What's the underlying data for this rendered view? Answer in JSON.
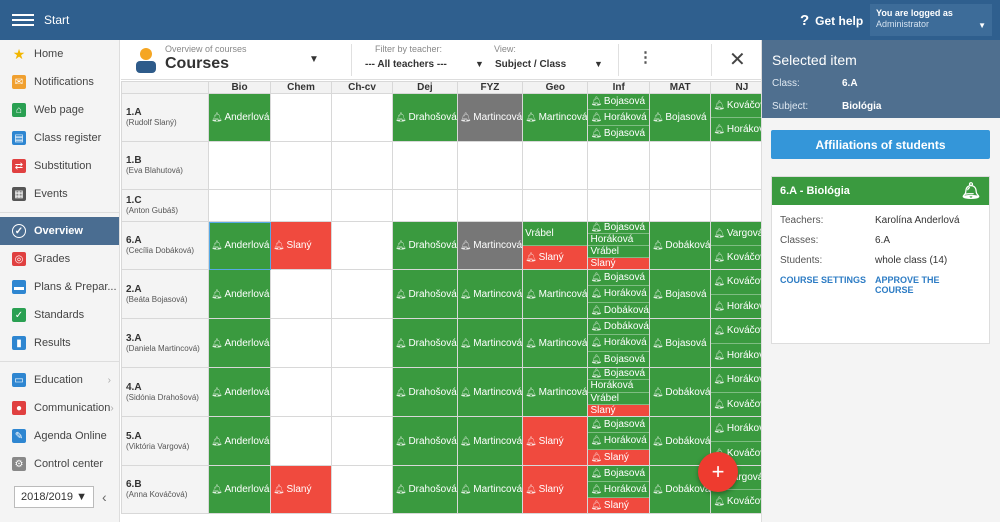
{
  "topbar": {
    "title": "Start",
    "help": "Get help",
    "user_line1": "You are logged as",
    "user_line2": "Administrator"
  },
  "sidebar": {
    "items": [
      {
        "label": "Home",
        "icon": "star-icon",
        "color": "#f2b600"
      },
      {
        "label": "Notifications",
        "icon": "mail-icon",
        "color": "#f0a030"
      },
      {
        "label": "Web page",
        "icon": "house-icon",
        "color": "#2aa052"
      },
      {
        "label": "Class register",
        "icon": "book-icon",
        "color": "#2e86d1"
      },
      {
        "label": "Substitution",
        "icon": "swap-icon",
        "color": "#e04040"
      },
      {
        "label": "Events",
        "icon": "calendar-icon",
        "color": "#555555"
      },
      {
        "label": "Overview",
        "icon": "check-circle-icon",
        "color": "#ffffff"
      },
      {
        "label": "Grades",
        "icon": "grades-icon",
        "color": "#e04040"
      },
      {
        "label": "Plans & Prepar...",
        "icon": "plans-icon",
        "color": "#2e86d1"
      },
      {
        "label": "Standards",
        "icon": "shield-icon",
        "color": "#2aa052"
      },
      {
        "label": "Results",
        "icon": "bar-chart-icon",
        "color": "#2e86d1"
      },
      {
        "label": "Education",
        "icon": "education-icon",
        "color": "#2e86d1"
      },
      {
        "label": "Communication",
        "icon": "chat-icon",
        "color": "#e04040"
      },
      {
        "label": "Agenda Online",
        "icon": "pen-icon",
        "color": "#2e86d1"
      },
      {
        "label": "Control center",
        "icon": "cog-icon",
        "color": "#888888"
      }
    ],
    "year": "2018/2019"
  },
  "header": {
    "overview_label": "Overview of courses",
    "title": "Courses",
    "filter_label": "Filter by teacher:",
    "filter_value": "--- All teachers ---",
    "view_label": "View:",
    "view_value": "Subject / Class"
  },
  "grid": {
    "columns": [
      "Bio",
      "Chem",
      "Ch-cv",
      "Dej",
      "FYZ",
      "Geo",
      "Inf",
      "MAT",
      "NJ"
    ],
    "rows": [
      {
        "cls": "1.A",
        "teacher": "(Rudolf Slaný)",
        "cells": [
          [
            {
              "t": "Anderlová",
              "c": "g",
              "b": true
            }
          ],
          [],
          [],
          [
            {
              "t": "Drahošová",
              "c": "g",
              "b": true
            }
          ],
          [
            {
              "t": "Martincová",
              "c": "gr",
              "b": true
            }
          ],
          [
            {
              "t": "Martincová",
              "c": "g",
              "b": true
            }
          ],
          [
            {
              "t": "Bojasová",
              "c": "g",
              "b": true
            },
            {
              "t": "Horáková",
              "c": "g",
              "b": true
            },
            {
              "t": "Bojasová",
              "c": "g",
              "b": true
            }
          ],
          [
            {
              "t": "Bojasová",
              "c": "g",
              "b": true
            }
          ],
          [
            {
              "t": "Kováčová",
              "c": "g",
              "b": true
            },
            {
              "t": "Horáková",
              "c": "g",
              "b": true
            }
          ]
        ]
      },
      {
        "cls": "1.B",
        "teacher": "(Eva Blahutová)",
        "cells": [
          [],
          [],
          [],
          [],
          [],
          [],
          [],
          [],
          []
        ]
      },
      {
        "cls": "1.C",
        "teacher": "(Anton Gubáš)",
        "cells": [
          [],
          [],
          [],
          [],
          [],
          [],
          [],
          [],
          []
        ]
      },
      {
        "cls": "6.A",
        "teacher": "(Cecília Dobáková)",
        "cells": [
          [
            {
              "t": "Anderlová",
              "c": "g",
              "b": true
            }
          ],
          [
            {
              "t": "Slaný",
              "c": "r",
              "b": true
            }
          ],
          [],
          [
            {
              "t": "Drahošová",
              "c": "g",
              "b": true
            }
          ],
          [
            {
              "t": "Martincová",
              "c": "gr",
              "b": true
            }
          ],
          [
            {
              "t": "Vrábel",
              "c": "g",
              "b": false
            },
            {
              "t": "Slaný",
              "c": "r",
              "b": true
            }
          ],
          [
            {
              "t": "Bojasová",
              "c": "g",
              "b": true
            },
            {
              "t": "Horáková",
              "c": "g",
              "b": false
            },
            {
              "t": "Vrábel",
              "c": "g",
              "b": false
            },
            {
              "t": "Slaný",
              "c": "r",
              "b": false
            }
          ],
          [
            {
              "t": "Dobáková",
              "c": "g",
              "b": true
            }
          ],
          [
            {
              "t": "Vargová",
              "c": "g",
              "b": true
            },
            {
              "t": "Kováčová",
              "c": "g",
              "b": true
            }
          ]
        ]
      },
      {
        "cls": "2.A",
        "teacher": "(Beáta Bojasová)",
        "cells": [
          [
            {
              "t": "Anderlová",
              "c": "g",
              "b": true
            }
          ],
          [],
          [],
          [
            {
              "t": "Drahošová",
              "c": "g",
              "b": true
            }
          ],
          [
            {
              "t": "Martincová",
              "c": "g",
              "b": true
            }
          ],
          [
            {
              "t": "Martincová",
              "c": "g",
              "b": true
            }
          ],
          [
            {
              "t": "Bojasová",
              "c": "g",
              "b": true
            },
            {
              "t": "Horáková",
              "c": "g",
              "b": true
            },
            {
              "t": "Dobáková",
              "c": "g",
              "b": true
            }
          ],
          [
            {
              "t": "Bojasová",
              "c": "g",
              "b": true
            }
          ],
          [
            {
              "t": "Kováčová",
              "c": "g",
              "b": true
            },
            {
              "t": "Horáková",
              "c": "g",
              "b": true
            }
          ]
        ]
      },
      {
        "cls": "3.A",
        "teacher": "(Daniela Martincová)",
        "cells": [
          [
            {
              "t": "Anderlová",
              "c": "g",
              "b": true
            }
          ],
          [],
          [],
          [
            {
              "t": "Drahošová",
              "c": "g",
              "b": true
            }
          ],
          [
            {
              "t": "Martincová",
              "c": "g",
              "b": true
            }
          ],
          [
            {
              "t": "Martincová",
              "c": "g",
              "b": true
            }
          ],
          [
            {
              "t": "Dobáková",
              "c": "g",
              "b": true
            },
            {
              "t": "Horáková",
              "c": "g",
              "b": true
            },
            {
              "t": "Bojasová",
              "c": "g",
              "b": true
            }
          ],
          [
            {
              "t": "Bojasová",
              "c": "g",
              "b": true
            }
          ],
          [
            {
              "t": "Kováčová",
              "c": "g",
              "b": true
            },
            {
              "t": "Horáková",
              "c": "g",
              "b": true
            }
          ]
        ]
      },
      {
        "cls": "4.A",
        "teacher": "(Sidónia Drahošová)",
        "cells": [
          [
            {
              "t": "Anderlová",
              "c": "g",
              "b": true
            }
          ],
          [],
          [],
          [
            {
              "t": "Drahošová",
              "c": "g",
              "b": true
            }
          ],
          [
            {
              "t": "Martincová",
              "c": "g",
              "b": true
            }
          ],
          [
            {
              "t": "Martincová",
              "c": "g",
              "b": true
            }
          ],
          [
            {
              "t": "Bojasová",
              "c": "g",
              "b": true
            },
            {
              "t": "Horáková",
              "c": "g",
              "b": false
            },
            {
              "t": "Vrábel",
              "c": "g",
              "b": false
            },
            {
              "t": "Slaný",
              "c": "r",
              "b": false
            }
          ],
          [
            {
              "t": "Dobáková",
              "c": "g",
              "b": true
            }
          ],
          [
            {
              "t": "Horáková",
              "c": "g",
              "b": true
            },
            {
              "t": "Kováčová",
              "c": "g",
              "b": true
            }
          ]
        ]
      },
      {
        "cls": "5.A",
        "teacher": "(Viktória Vargová)",
        "cells": [
          [
            {
              "t": "Anderlová",
              "c": "g",
              "b": true
            }
          ],
          [],
          [],
          [
            {
              "t": "Drahošová",
              "c": "g",
              "b": true
            }
          ],
          [
            {
              "t": "Martincová",
              "c": "g",
              "b": true
            }
          ],
          [
            {
              "t": "Slaný",
              "c": "r",
              "b": true
            }
          ],
          [
            {
              "t": "Bojasová",
              "c": "g",
              "b": true
            },
            {
              "t": "Horáková",
              "c": "g",
              "b": true
            },
            {
              "t": "Slaný",
              "c": "r",
              "b": true
            }
          ],
          [
            {
              "t": "Dobáková",
              "c": "g",
              "b": true
            }
          ],
          [
            {
              "t": "Horáková",
              "c": "g",
              "b": true
            },
            {
              "t": "Kováčová",
              "c": "g",
              "b": true
            }
          ]
        ]
      },
      {
        "cls": "6.B",
        "teacher": "(Anna Kováčová)",
        "cells": [
          [
            {
              "t": "Anderlová",
              "c": "g",
              "b": true
            }
          ],
          [
            {
              "t": "Slaný",
              "c": "r",
              "b": true
            }
          ],
          [],
          [
            {
              "t": "Drahošová",
              "c": "g",
              "b": true
            }
          ],
          [
            {
              "t": "Martincová",
              "c": "g",
              "b": true
            }
          ],
          [
            {
              "t": "Slaný",
              "c": "r",
              "b": true
            }
          ],
          [
            {
              "t": "Bojasová",
              "c": "g",
              "b": true
            },
            {
              "t": "Horáková",
              "c": "g",
              "b": true
            },
            {
              "t": "Slaný",
              "c": "r",
              "b": true
            }
          ],
          [
            {
              "t": "Dobáková",
              "c": "g",
              "b": true
            }
          ],
          [
            {
              "t": "Vargová",
              "c": "g",
              "b": true
            },
            {
              "t": "Kováčová",
              "c": "g",
              "b": true
            }
          ]
        ]
      }
    ]
  },
  "selected": {
    "title": "Selected item",
    "class_label": "Class:",
    "class_value": "6.A",
    "subject_label": "Subject:",
    "subject_value": "Biológia",
    "affiliations": "Affiliations of students",
    "card_title": "6.A - Biológia",
    "teachers_label": "Teachers:",
    "teachers_value": "Karolína Anderlová",
    "classes_label": "Classes:",
    "classes_value": "6.A",
    "students_label": "Students:",
    "students_value": "whole class (14)",
    "course_settings": "COURSE SETTINGS",
    "approve": "APPROVE THE COURSE"
  },
  "fab": "+"
}
